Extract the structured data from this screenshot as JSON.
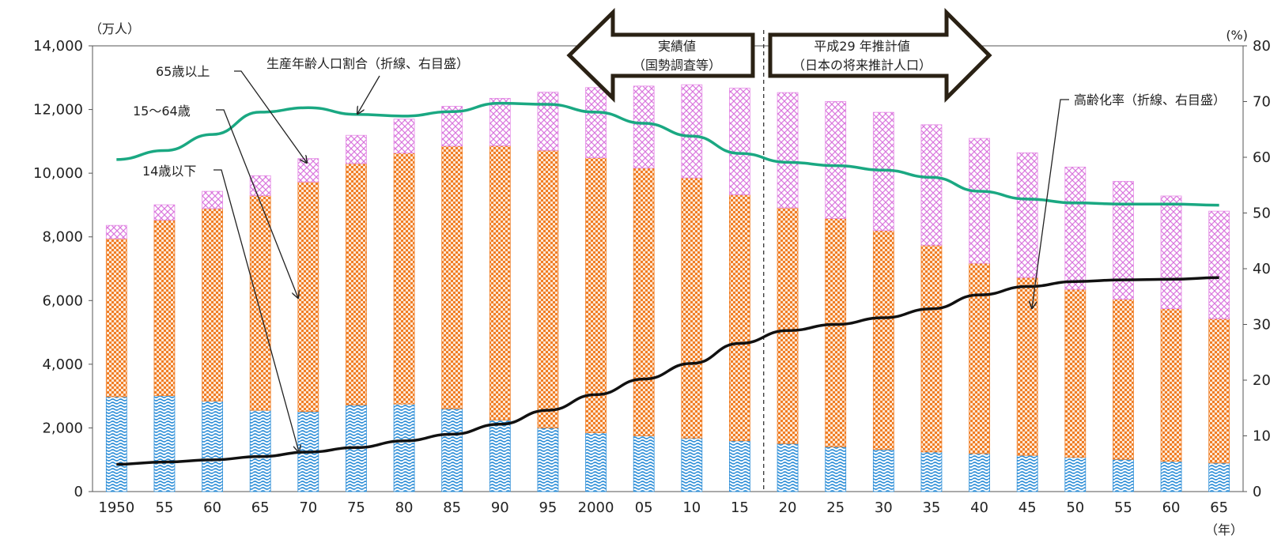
{
  "chart_data": {
    "type": "bar",
    "stacked": true,
    "categories": [
      "1950",
      "55",
      "60",
      "65",
      "70",
      "75",
      "80",
      "85",
      "90",
      "95",
      "2000",
      "05",
      "10",
      "15",
      "20",
      "25",
      "30",
      "35",
      "40",
      "45",
      "50",
      "55",
      "60",
      "65"
    ],
    "left_unit": "（万人）",
    "right_unit": "(%)",
    "x_unit": "（年）",
    "ylim_left": [
      0,
      14000
    ],
    "ylim_right": [
      0,
      80
    ],
    "y_ticks_left": [
      "0",
      "2,000",
      "4,000",
      "6,000",
      "8,000",
      "10,000",
      "12,000",
      "14,000"
    ],
    "y_ticks_right": [
      "0",
      "10",
      "20",
      "30",
      "40",
      "50",
      "60",
      "70",
      "80"
    ],
    "series": [
      {
        "name": "14歳以下",
        "pattern": "blue-wave",
        "color": "#2f8fd8",
        "values": [
          2979,
          3012,
          2843,
          2553,
          2515,
          2722,
          2751,
          2603,
          2249,
          2001,
          1847,
          1752,
          1680,
          1595,
          1507,
          1407,
          1321,
          1246,
          1194,
          1138,
          1077,
          1012,
          951,
          898
        ]
      },
      {
        "name": "15～64歳",
        "pattern": "orange-dots",
        "color": "#f07e26",
        "values": [
          4966,
          5517,
          6047,
          6744,
          7212,
          7581,
          7883,
          8251,
          8614,
          8717,
          8638,
          8409,
          8174,
          7728,
          7406,
          7170,
          6875,
          6494,
          5978,
          5584,
          5275,
          5028,
          4793,
          4529
        ]
      },
      {
        "name": "65歳以上",
        "pattern": "pink-crosshatch",
        "color": "#e58ae6",
        "values": [
          416,
          479,
          540,
          624,
          733,
          887,
          1065,
          1247,
          1489,
          1826,
          2204,
          2576,
          2925,
          3347,
          3619,
          3677,
          3716,
          3782,
          3921,
          3919,
          3841,
          3704,
          3540,
          3381
        ]
      }
    ],
    "lines": [
      {
        "name": "生産年齢人口割合（折線、右目盛）",
        "color": "#1aa882",
        "values": [
          59.6,
          61.2,
          64.1,
          68.1,
          68.9,
          67.7,
          67.4,
          68.2,
          69.7,
          69.5,
          68.1,
          66.1,
          63.8,
          60.7,
          59.1,
          58.5,
          57.7,
          56.4,
          53.9,
          52.5,
          51.8,
          51.6,
          51.6,
          51.4
        ]
      },
      {
        "name": "高齢化率（折線、右目盛）",
        "color": "#111111",
        "values": [
          4.9,
          5.3,
          5.7,
          6.3,
          7.1,
          7.9,
          9.1,
          10.3,
          12.1,
          14.6,
          17.4,
          20.2,
          23.0,
          26.6,
          28.9,
          30.0,
          31.2,
          32.8,
          35.3,
          36.8,
          37.7,
          38.0,
          38.1,
          38.4
        ]
      }
    ],
    "annotations": {
      "label_65": "65歳以上",
      "label_15_64": "15～64歳",
      "label_14": "14歳以下",
      "label_working": "生産年齢人口割合（折線、右目盛）",
      "label_aging": "高齢化率（折線、右目盛）",
      "actual_line1": "実績値",
      "actual_line2": "（国勢調査等）",
      "projected_line1": "平成29 年推計値",
      "projected_line2": "（日本の将来推計人口）"
    }
  }
}
